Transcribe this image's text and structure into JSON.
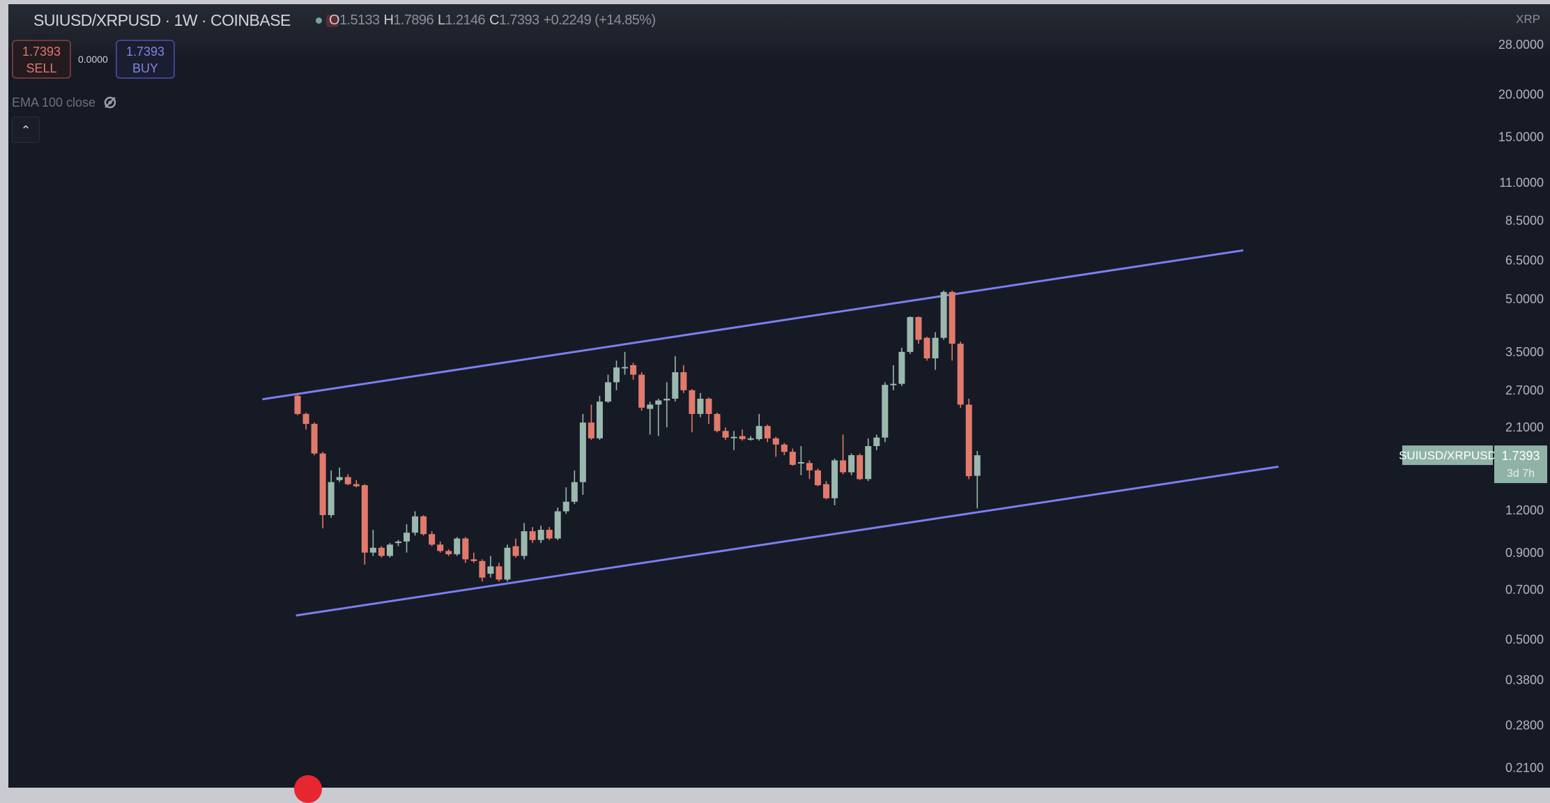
{
  "header": {
    "symbol_title": "SUIUSD/XRPUSD · 1W · COINBASE",
    "ohlc": {
      "o_label": "O",
      "o": "1.5133",
      "h_label": "H",
      "h": "1.7896",
      "l_label": "L",
      "l": "1.2146",
      "c_label": "C",
      "c": "1.7393",
      "change": "+0.2249 (+14.85%)"
    },
    "status_dot_color": "#6fa79a",
    "market_icon": "market-status-icon"
  },
  "trade": {
    "sell_price": "1.7393",
    "sell_label": "SELL",
    "spread": "0.0000",
    "buy_price": "1.7393",
    "buy_label": "BUY"
  },
  "indicator": {
    "label": "EMA 100 close",
    "icon": "eye-hidden-icon"
  },
  "collapse_icon": "chevron-up-icon",
  "price_axis": {
    "currency": "XRP",
    "current_symbol": "SUIUSD/XRPUSD",
    "current_price": "1.7393",
    "countdown": "3d 7h"
  },
  "colors": {
    "up": "#9ab8ad",
    "down": "#e27a6c",
    "trendline": "#7b7ff0",
    "background": "#161a25",
    "last_price": "#8fb3a6"
  },
  "chart_data": {
    "type": "candlestick",
    "interval": "1W",
    "scale": "log",
    "ylim": [
      0.21,
      28
    ],
    "y_ticks": [
      "28.0000",
      "20.0000",
      "15.0000",
      "11.0000",
      "8.5000",
      "6.5000",
      "5.0000",
      "3.5000",
      "2.7000",
      "2.1000",
      "1.2000",
      "0.9000",
      "0.7000",
      "0.5000",
      "0.3800",
      "0.2800",
      "0.2100"
    ],
    "ohlc_fields": [
      "open",
      "high",
      "low",
      "close"
    ],
    "candles": [
      [
        2.6,
        2.65,
        2.28,
        2.3
      ],
      [
        2.3,
        2.32,
        2.07,
        2.15
      ],
      [
        2.15,
        2.17,
        1.74,
        1.76
      ],
      [
        1.76,
        1.78,
        1.06,
        1.16
      ],
      [
        1.16,
        1.57,
        1.14,
        1.45
      ],
      [
        1.47,
        1.6,
        1.45,
        1.5
      ],
      [
        1.5,
        1.53,
        1.42,
        1.43
      ],
      [
        1.43,
        1.47,
        1.4,
        1.41
      ],
      [
        1.42,
        1.43,
        0.83,
        0.9
      ],
      [
        0.9,
        1.05,
        0.88,
        0.93
      ],
      [
        0.93,
        0.94,
        0.87,
        0.88
      ],
      [
        0.88,
        0.96,
        0.87,
        0.95
      ],
      [
        0.96,
        0.98,
        0.94,
        0.97
      ],
      [
        0.97,
        1.09,
        0.9,
        1.03
      ],
      [
        1.03,
        1.19,
        1.01,
        1.15
      ],
      [
        1.15,
        1.16,
        1.01,
        1.02
      ],
      [
        1.02,
        1.04,
        0.94,
        0.95
      ],
      [
        0.95,
        0.97,
        0.9,
        0.91
      ],
      [
        0.91,
        0.92,
        0.88,
        0.89
      ],
      [
        0.89,
        1.0,
        0.88,
        0.99
      ],
      [
        0.99,
        1.0,
        0.84,
        0.86
      ],
      [
        0.86,
        0.9,
        0.84,
        0.85
      ],
      [
        0.85,
        0.86,
        0.74,
        0.76
      ],
      [
        0.78,
        0.88,
        0.76,
        0.82
      ],
      [
        0.82,
        0.84,
        0.74,
        0.75
      ],
      [
        0.75,
        0.95,
        0.74,
        0.93
      ],
      [
        0.94,
        0.99,
        0.87,
        0.88
      ],
      [
        0.88,
        1.1,
        0.86,
        1.04
      ],
      [
        1.04,
        1.07,
        0.96,
        0.98
      ],
      [
        0.98,
        1.08,
        0.96,
        1.05
      ],
      [
        1.05,
        1.07,
        0.98,
        0.99
      ],
      [
        0.99,
        1.22,
        0.98,
        1.19
      ],
      [
        1.19,
        1.4,
        1.17,
        1.27
      ],
      [
        1.27,
        1.57,
        1.25,
        1.45
      ],
      [
        1.45,
        2.3,
        1.33,
        2.17
      ],
      [
        2.17,
        2.45,
        1.93,
        1.95
      ],
      [
        1.95,
        2.6,
        1.93,
        2.5
      ],
      [
        2.5,
        3.0,
        2.48,
        2.85
      ],
      [
        2.85,
        3.3,
        2.7,
        3.15
      ],
      [
        3.15,
        3.5,
        3.0,
        3.16
      ],
      [
        3.2,
        3.25,
        2.9,
        3.0
      ],
      [
        3.0,
        3.05,
        2.35,
        2.4
      ],
      [
        2.38,
        2.5,
        2.0,
        2.45
      ],
      [
        2.45,
        2.55,
        1.98,
        2.52
      ],
      [
        2.52,
        2.85,
        2.1,
        2.55
      ],
      [
        2.55,
        3.4,
        2.5,
        3.05
      ],
      [
        3.05,
        3.2,
        2.65,
        2.7
      ],
      [
        2.7,
        2.72,
        2.03,
        2.3
      ],
      [
        2.3,
        2.65,
        2.25,
        2.55
      ],
      [
        2.55,
        2.57,
        2.15,
        2.3
      ],
      [
        2.3,
        2.32,
        2.03,
        2.05
      ],
      [
        2.05,
        2.1,
        1.93,
        1.96
      ],
      [
        1.96,
        2.05,
        1.8,
        1.97
      ],
      [
        1.98,
        2.07,
        1.92,
        1.94
      ],
      [
        1.94,
        1.98,
        1.92,
        1.95
      ],
      [
        1.94,
        2.3,
        1.92,
        2.12
      ],
      [
        2.12,
        2.14,
        1.9,
        1.95
      ],
      [
        1.95,
        1.97,
        1.72,
        1.87
      ],
      [
        1.87,
        1.89,
        1.74,
        1.78
      ],
      [
        1.78,
        1.82,
        1.62,
        1.63
      ],
      [
        1.65,
        1.85,
        1.52,
        1.66
      ],
      [
        1.65,
        1.68,
        1.48,
        1.57
      ],
      [
        1.57,
        1.59,
        1.41,
        1.42
      ],
      [
        1.43,
        1.46,
        1.29,
        1.3
      ],
      [
        1.3,
        1.7,
        1.24,
        1.68
      ],
      [
        1.68,
        2.0,
        1.53,
        1.55
      ],
      [
        1.55,
        1.76,
        1.52,
        1.74
      ],
      [
        1.74,
        1.76,
        1.47,
        1.48
      ],
      [
        1.48,
        1.95,
        1.46,
        1.85
      ],
      [
        1.85,
        2.0,
        1.8,
        1.96
      ],
      [
        1.96,
        2.85,
        1.9,
        2.8
      ],
      [
        2.8,
        3.2,
        2.7,
        2.82
      ],
      [
        2.82,
        3.6,
        2.78,
        3.5
      ],
      [
        3.5,
        4.45,
        3.45,
        4.43
      ],
      [
        4.43,
        4.45,
        3.7,
        3.8
      ],
      [
        3.85,
        3.88,
        3.3,
        3.35
      ],
      [
        3.35,
        4.0,
        3.1,
        3.85
      ],
      [
        3.85,
        5.3,
        3.8,
        5.25
      ],
      [
        5.25,
        5.3,
        3.3,
        3.7
      ],
      [
        3.7,
        3.75,
        2.4,
        2.45
      ],
      [
        2.45,
        2.55,
        1.48,
        1.51
      ],
      [
        1.5133,
        1.7896,
        1.2146,
        1.7393
      ]
    ],
    "trendlines": [
      {
        "from_bar": -4.2,
        "from_price": 2.54,
        "to_bar": 112.7,
        "to_price": 6.96
      },
      {
        "from_bar": -0.2,
        "from_price": 0.588,
        "to_bar": 116.9,
        "to_price": 1.61
      }
    ],
    "last_price": 1.7393
  }
}
